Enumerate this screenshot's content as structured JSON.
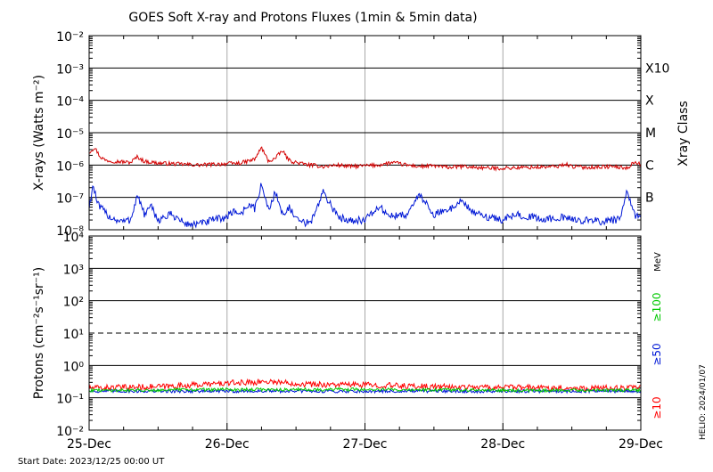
{
  "chart_data": [
    {
      "type": "line",
      "title": "GOES Soft X-ray and Protons Fluxes   (1min & 5min data)",
      "ylabel": "X-rays (Watts m⁻²)",
      "y2label": "Xray Class",
      "yscale": "log",
      "ylim": [
        1e-08,
        0.01
      ],
      "ytick_values": [
        1e-08,
        1e-07,
        1e-06,
        1e-05,
        0.0001,
        0.001,
        0.01
      ],
      "ytick_labels": [
        "10⁻⁸",
        "10⁻⁷",
        "10⁻⁶",
        "10⁻⁵",
        "10⁻⁴",
        "10⁻³",
        "10⁻²"
      ],
      "class_labels": [
        {
          "label": "X10",
          "value": 0.001
        },
        {
          "label": "X",
          "value": 0.0001
        },
        {
          "label": "M",
          "value": 1e-05
        },
        {
          "label": "C",
          "value": 1e-06
        },
        {
          "label": "B",
          "value": 1e-07
        }
      ],
      "xlim": [
        "2023-12-25",
        "2023-12-29"
      ],
      "grid": true,
      "series": [
        {
          "color": "#d40000",
          "x_days": [
            0,
            0.04,
            0.08,
            0.12,
            0.2,
            0.3,
            0.35,
            0.4,
            0.5,
            0.6,
            0.7,
            0.8,
            0.9,
            1.0,
            1.1,
            1.2,
            1.25,
            1.3,
            1.35,
            1.4,
            1.45,
            1.5,
            1.6,
            1.7,
            1.8,
            1.9,
            2.0,
            2.1,
            2.2,
            2.3,
            2.4,
            2.5,
            2.6,
            2.7,
            2.8,
            2.9,
            3.0,
            3.2,
            3.4,
            3.45,
            3.5,
            3.6,
            3.8,
            3.9,
            3.96,
            4.0
          ],
          "values": [
            2.5e-06,
            3.5e-06,
            1.8e-06,
            1.4e-06,
            1.3e-06,
            1.2e-06,
            1.8e-06,
            1.3e-06,
            1.15e-06,
            1.1e-06,
            1.05e-06,
            1e-06,
            1.05e-06,
            1.1e-06,
            1.15e-06,
            1.5e-06,
            3.5e-06,
            1.3e-06,
            1.6e-06,
            2.8e-06,
            1.4e-06,
            1.2e-06,
            1e-06,
            9e-07,
            1e-06,
            9e-07,
            9.5e-07,
            1e-06,
            1.2e-06,
            1e-06,
            9e-07,
            9.5e-07,
            8.5e-07,
            9e-07,
            8.5e-07,
            8e-07,
            8e-07,
            8.5e-07,
            9e-07,
            1.1e-06,
            9e-07,
            8.5e-07,
            9e-07,
            8e-07,
            1.3e-06,
            1e-06
          ]
        },
        {
          "color": "#0018d6",
          "x_days": [
            0,
            0.03,
            0.06,
            0.1,
            0.15,
            0.2,
            0.25,
            0.3,
            0.35,
            0.4,
            0.45,
            0.5,
            0.6,
            0.7,
            0.8,
            0.9,
            1.0,
            1.05,
            1.1,
            1.15,
            1.2,
            1.25,
            1.3,
            1.35,
            1.4,
            1.45,
            1.5,
            1.6,
            1.7,
            1.8,
            1.9,
            2.0,
            2.1,
            2.2,
            2.3,
            2.4,
            2.5,
            2.6,
            2.7,
            2.8,
            2.9,
            3.0,
            3.1,
            3.2,
            3.3,
            3.4,
            3.5,
            3.6,
            3.7,
            3.8,
            3.85,
            3.9,
            3.95,
            4.0
          ],
          "values": [
            5e-08,
            2.5e-07,
            6e-08,
            4e-08,
            2.5e-08,
            2e-08,
            1.8e-08,
            2e-08,
            1.2e-07,
            3e-08,
            5e-08,
            2e-08,
            3e-08,
            1.5e-08,
            1.5e-08,
            2e-08,
            2.5e-08,
            4e-08,
            3e-08,
            6e-08,
            4.5e-08,
            2.5e-07,
            4e-08,
            1.5e-07,
            3e-08,
            5e-08,
            2e-08,
            1.5e-08,
            1.5e-07,
            2.5e-08,
            2e-08,
            2e-08,
            5e-08,
            2.5e-08,
            3e-08,
            1.2e-07,
            3e-08,
            4e-08,
            8e-08,
            3e-08,
            2.5e-08,
            2e-08,
            3e-08,
            2.5e-08,
            2e-08,
            2.5e-08,
            2e-08,
            2e-08,
            1.8e-08,
            2e-08,
            2e-08,
            1.5e-07,
            3e-08,
            2.5e-08
          ]
        }
      ]
    },
    {
      "type": "line",
      "ylabel": "Protons (cm⁻²s⁻¹sr⁻¹)",
      "yscale": "log",
      "ylim": [
        0.01,
        10000
      ],
      "ytick_values": [
        0.01,
        0.1,
        1,
        10,
        100,
        1000,
        10000
      ],
      "ytick_labels": [
        "10⁻²",
        "10⁻¹",
        "10⁰",
        "10¹",
        "10²",
        "10³",
        "10⁴"
      ],
      "threshold": 10,
      "xlim": [
        "2023-12-25",
        "2023-12-29"
      ],
      "xtick_labels": [
        "25-Dec",
        "26-Dec",
        "27-Dec",
        "28-Dec",
        "29-Dec"
      ],
      "unit_label": "MeV",
      "grid": true,
      "series": [
        {
          "name": "≥10",
          "color": "#ff0000",
          "x_days": [
            0,
            0.5,
            1.0,
            1.3,
            1.6,
            2.0,
            2.5,
            3.0,
            3.5,
            4.0
          ],
          "values": [
            0.2,
            0.22,
            0.28,
            0.32,
            0.26,
            0.25,
            0.22,
            0.21,
            0.2,
            0.2
          ]
        },
        {
          "name": "≥50",
          "color": "#0018d6",
          "x_days": [
            0,
            1.0,
            2.0,
            3.0,
            4.0
          ],
          "values": [
            0.16,
            0.16,
            0.16,
            0.16,
            0.16
          ]
        },
        {
          "name": "≥100",
          "color": "#00c800",
          "x_days": [
            0,
            1.0,
            2.0,
            3.0,
            4.0
          ],
          "values": [
            0.17,
            0.18,
            0.18,
            0.17,
            0.17
          ]
        }
      ]
    }
  ],
  "footer": {
    "start_date": "Start Date: 2023/12/25 00:00 UT",
    "credit": "HELIO: 2024/01/07"
  }
}
